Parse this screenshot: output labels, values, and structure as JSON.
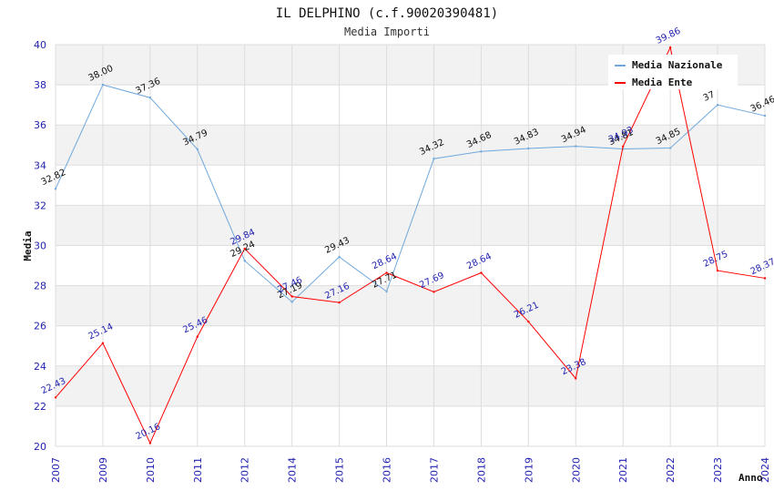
{
  "chart_data": {
    "type": "line",
    "title": "IL DELPHINO (c.f.90020390481)",
    "subtitle": "Media Importi",
    "xlabel": "Anno",
    "ylabel": "Media",
    "ylim": [
      20,
      40
    ],
    "yticks": [
      "20",
      "22",
      "24",
      "26",
      "28",
      "30",
      "32",
      "34",
      "36",
      "38",
      "40"
    ],
    "x": [
      "2007",
      "2009",
      "2010",
      "2011",
      "2012",
      "2014",
      "2015",
      "2016",
      "2017",
      "2018",
      "2019",
      "2020",
      "2021",
      "2022",
      "2023",
      "2024"
    ],
    "grid": "horizontal bands",
    "legend_position": "top-right",
    "series": [
      {
        "name": "Media Nazionale",
        "color": "#6fa8dc",
        "values": [
          32.82,
          38.0,
          37.36,
          34.79,
          29.24,
          27.19,
          29.43,
          27.71,
          34.32,
          34.68,
          34.83,
          34.94,
          34.81,
          34.85,
          37.0,
          36.46
        ],
        "labels": [
          "32.82",
          "38.00",
          "37.36",
          "34.79",
          "29.24",
          "27.19",
          "29.43",
          "27.71",
          "34.32",
          "34.68",
          "34.83",
          "34.94",
          "34.81",
          "34.85",
          "37",
          "36.46"
        ]
      },
      {
        "name": "Media Ente",
        "color": "#ff0000",
        "values": [
          22.43,
          25.14,
          20.16,
          25.46,
          29.84,
          27.46,
          27.16,
          28.64,
          27.69,
          28.64,
          26.21,
          23.38,
          34.93,
          39.86,
          28.75,
          28.37
        ],
        "labels": [
          "22.43",
          "25.14",
          "20.16",
          "25.46",
          "29.84",
          "27.46",
          "27.16",
          "28.64",
          "27.69",
          "28.64",
          "26.21",
          "23.38",
          "34.93",
          "39.86",
          "28.75",
          "28.37"
        ]
      }
    ]
  }
}
